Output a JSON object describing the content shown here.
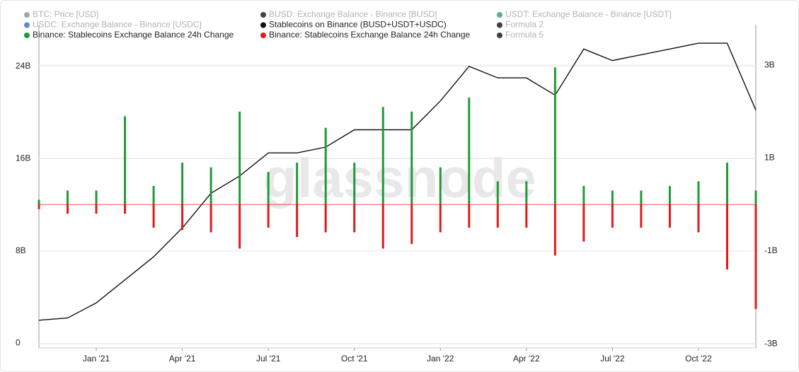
{
  "chart_data": {
    "type": "combo",
    "watermark": "glassnode",
    "x": [
      "2020-11",
      "2020-12",
      "2021-01",
      "2021-02",
      "2021-03",
      "2021-04",
      "2021-05",
      "2021-06",
      "2021-07",
      "2021-08",
      "2021-09",
      "2021-10",
      "2021-11",
      "2021-12",
      "2022-01",
      "2022-02",
      "2022-03",
      "2022-04",
      "2022-05",
      "2022-06",
      "2022-07",
      "2022-08",
      "2022-09",
      "2022-10",
      "2022-11",
      "2022-12"
    ],
    "xlim": [
      "2020-11",
      "2022-12"
    ],
    "xticks": [
      {
        "value": "2021-01",
        "label": "Jan '21"
      },
      {
        "value": "2021-04",
        "label": "Apr '21"
      },
      {
        "value": "2021-07",
        "label": "Jul '21"
      },
      {
        "value": "2021-10",
        "label": "Oct '21"
      },
      {
        "value": "2022-01",
        "label": "Jan '22"
      },
      {
        "value": "2022-04",
        "label": "Apr '22"
      },
      {
        "value": "2022-07",
        "label": "Jul '22"
      },
      {
        "value": "2022-10",
        "label": "Oct '22"
      }
    ],
    "ylim": [
      -0.4,
      27.6
    ],
    "yticks": [
      {
        "value": 0,
        "label": "0"
      },
      {
        "value": 8,
        "label": "8B"
      },
      {
        "value": 16,
        "label": "16B"
      },
      {
        "value": 24,
        "label": "24B"
      }
    ],
    "y2lim": [
      -3.09,
      3.87
    ],
    "y2ticks": [
      {
        "value": -3,
        "label": "-3B"
      },
      {
        "value": -1,
        "label": "-1B"
      },
      {
        "value": 1,
        "label": "1B"
      },
      {
        "value": 3,
        "label": "3B"
      }
    ],
    "grid": true,
    "series": [
      {
        "name": "BTC: Price [USD]",
        "color": "#8a8f98",
        "visible": false
      },
      {
        "name": "BUSD: Exchange Balance - Binance [BUSD]",
        "color": "#111111",
        "visible": false
      },
      {
        "name": "USDT: Exchange Balance - Binance [USDT]",
        "color": "#26a17b",
        "visible": false
      },
      {
        "name": "USDC: Exchange Balance - Binance [USDC]",
        "color": "#2f6fc0",
        "visible": false
      },
      {
        "name": "Stablecoins on Binance (BUSD+USDT+USDC)",
        "color": "#111111",
        "visible": true,
        "type": "line",
        "axis": "y",
        "values": [
          2.0,
          2.2,
          3.5,
          5.5,
          7.5,
          10,
          13,
          14.5,
          16.5,
          16.5,
          17,
          18.5,
          18.5,
          18.5,
          21,
          24,
          23,
          23,
          21.5,
          25.5,
          24.5,
          25,
          25.5,
          26,
          26,
          20.2
        ]
      },
      {
        "name": "Formula 2",
        "color": "#111111",
        "visible": false
      },
      {
        "name": "Binance: Stablecoins Exchange Balance 24h Change",
        "color": "#1e9a36",
        "visible": true,
        "type": "bar",
        "axis": "y2",
        "values": [
          0.1,
          0.3,
          0.3,
          1.9,
          0.4,
          0.9,
          0.8,
          2.0,
          0.7,
          0.9,
          1.65,
          0.9,
          2.1,
          2.0,
          0.8,
          2.3,
          0.5,
          0.5,
          2.95,
          0.4,
          0.3,
          0.3,
          0.4,
          0.5,
          0.9,
          0.3
        ]
      },
      {
        "name": "Binance: Stablecoins Exchange Balance 24h Change",
        "color": "#e0191e",
        "visible": true,
        "type": "bar",
        "axis": "y2",
        "values": [
          -0.1,
          -0.2,
          -0.2,
          -0.2,
          -0.5,
          -0.55,
          -0.6,
          -0.95,
          -0.5,
          -0.7,
          -0.6,
          -0.6,
          -0.95,
          -0.85,
          -0.6,
          -0.5,
          -0.5,
          -0.5,
          -1.1,
          -0.8,
          -0.5,
          -0.5,
          -0.5,
          -0.6,
          -1.4,
          -2.25
        ]
      },
      {
        "name": "Formula 5",
        "color": "#111111",
        "visible": false
      }
    ]
  }
}
